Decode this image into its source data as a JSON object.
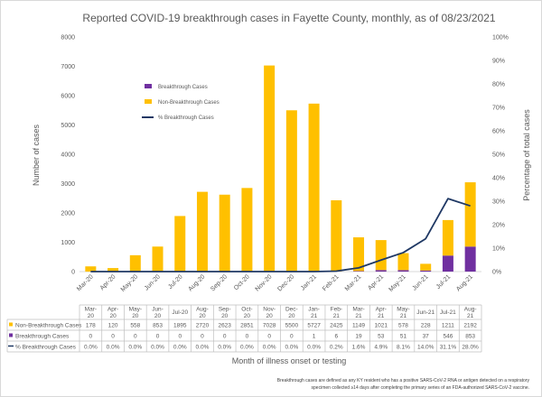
{
  "chart_data": {
    "type": "bar",
    "stacked": true,
    "title": "Reported COVID-19 breakthrough cases in Fayette County, monthly, as of 08/23/2021",
    "xlabel": "Month of illness onset or testing",
    "ylabel": "Number of cases",
    "y2label": "Percentage of total cases",
    "ylim": [
      0,
      8000
    ],
    "y2lim": [
      0,
      100
    ],
    "yticks": [
      "0",
      "1000",
      "2000",
      "3000",
      "4000",
      "5000",
      "6000",
      "7000",
      "8000"
    ],
    "y2ticks": [
      "0%",
      "10%",
      "20%",
      "30%",
      "40%",
      "50%",
      "60%",
      "70%",
      "80%",
      "90%",
      "100%"
    ],
    "grid": false,
    "legend_position": "top-left",
    "categories": [
      "Mar-20",
      "Apr-20",
      "May-20",
      "Jun-20",
      "Jul-20",
      "Aug-20",
      "Sep-20",
      "Oct-20",
      "Nov-20",
      "Dec-20",
      "Jan-21",
      "Feb-21",
      "Mar-21",
      "Apr-21",
      "May-21",
      "Jun-21",
      "Jul-21",
      "Aug-21"
    ],
    "table_categories": [
      "Mar-\n20",
      "Apr-\n20",
      "May-\n20",
      "Jun-\n20",
      "Jul-20",
      "Aug-\n20",
      "Sep-\n20",
      "Oct-\n20",
      "Nov-\n20",
      "Dec-\n20",
      "Jan-\n21",
      "Feb-\n21",
      "Mar-\n21",
      "Apr-\n21",
      "May-\n21",
      "Jun-21",
      "Jul-21",
      "Aug-\n21"
    ],
    "series": [
      {
        "name": "Breakthrough Cases",
        "kind": "bar",
        "axis": "left",
        "color": "#7030a0",
        "values": [
          0,
          0,
          0,
          0,
          0,
          0,
          0,
          0,
          0,
          0,
          1,
          6,
          19,
          53,
          51,
          37,
          546,
          853
        ],
        "labels": [
          "0",
          "0",
          "0",
          "0",
          "0",
          "0",
          "0",
          "0",
          "0",
          "0",
          "1",
          "6",
          "19",
          "53",
          "51",
          "37",
          "546",
          "853"
        ]
      },
      {
        "name": "Non-Breakthrough Cases",
        "kind": "bar",
        "axis": "left",
        "color": "#ffc000",
        "values": [
          178,
          120,
          558,
          853,
          1895,
          2720,
          2623,
          2851,
          7028,
          5500,
          5727,
          2425,
          1149,
          1021,
          578,
          228,
          1211,
          2192
        ],
        "labels": [
          "178",
          "120",
          "558",
          "853",
          "1895",
          "2720",
          "2623",
          "2851",
          "7028",
          "5500",
          "5727",
          "2425",
          "1149",
          "1021",
          "578",
          "228",
          "1211",
          "2192"
        ]
      },
      {
        "name": "% Breakthrough Cases",
        "kind": "line",
        "axis": "right",
        "color": "#1f3864",
        "values": [
          0,
          0,
          0,
          0,
          0,
          0,
          0,
          0,
          0,
          0,
          0,
          0.2,
          1.6,
          4.9,
          8.1,
          14.0,
          31.1,
          28.0
        ],
        "labels": [
          "0.0%",
          "0.0%",
          "0.0%",
          "0.0%",
          "0.0%",
          "0.0%",
          "0.0%",
          "0.0%",
          "0.0%",
          "0.0%",
          "0.0%",
          "0.2%",
          "1.6%",
          "4.9%",
          "8.1%",
          "14.0%",
          "31.1%",
          "28.0%"
        ]
      }
    ],
    "table_row_order": [
      1,
      0,
      2
    ],
    "footnote": [
      "Breakthrough cases are defined as any KY resident who has a positive SARS-CoV-2 RNA or antigen detected on a respiratory",
      "specimen collected ≥14 days after completing the primary series of an FDA-authorized SARS-CoV-2 vaccine."
    ]
  }
}
